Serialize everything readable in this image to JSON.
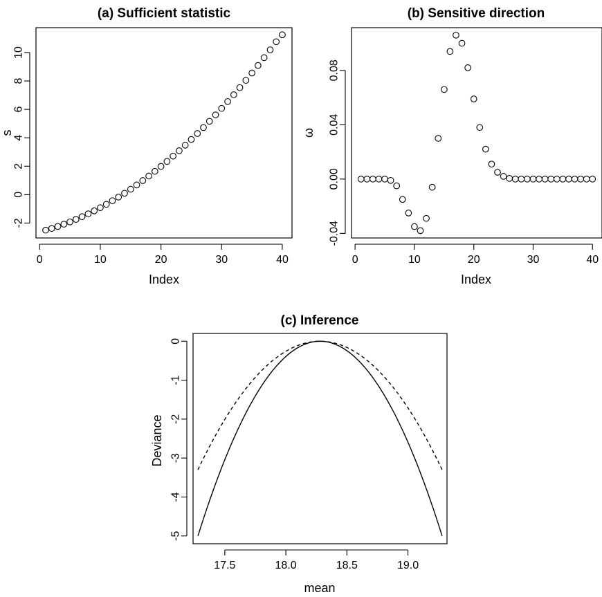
{
  "chart_data": [
    {
      "id": "a",
      "type": "scatter",
      "title": "(a) Sufficient statistic",
      "xlabel": "Index",
      "ylabel": "s",
      "xlim": [
        -0.6,
        41.6
      ],
      "ylim": [
        -3.05,
        11.75
      ],
      "xticks": [
        0,
        10,
        20,
        30,
        40
      ],
      "yticks": [
        -2,
        0,
        2,
        4,
        6,
        8,
        10
      ],
      "x": [
        1,
        2,
        3,
        4,
        5,
        6,
        7,
        8,
        9,
        10,
        11,
        12,
        13,
        14,
        15,
        16,
        17,
        18,
        19,
        20,
        21,
        22,
        23,
        24,
        25,
        26,
        27,
        28,
        29,
        30,
        31,
        32,
        33,
        34,
        35,
        36,
        37,
        38,
        39,
        40
      ],
      "y": [
        -2.5,
        -2.38,
        -2.24,
        -2.08,
        -1.92,
        -1.74,
        -1.55,
        -1.35,
        -1.14,
        -0.92,
        -0.68,
        -0.43,
        -0.17,
        0.1,
        0.38,
        0.68,
        0.99,
        1.31,
        1.64,
        1.99,
        2.34,
        2.71,
        3.09,
        3.48,
        3.88,
        4.3,
        4.72,
        5.16,
        5.61,
        6.07,
        6.55,
        7.03,
        7.53,
        8.04,
        8.56,
        9.09,
        9.64,
        10.19,
        10.76,
        11.25
      ]
    },
    {
      "id": "b",
      "type": "scatter",
      "title": "(b) Sensitive direction",
      "xlabel": "Index",
      "ylabel": "ω",
      "xlim": [
        -0.6,
        41.6
      ],
      "ylim": [
        -0.0434,
        0.1115
      ],
      "xticks": [
        0,
        10,
        20,
        30,
        40
      ],
      "yticks": [
        -0.04,
        0.0,
        0.04,
        0.08
      ],
      "ytick_labels": [
        "-0.04",
        "0.00",
        "0.04",
        "0.08"
      ],
      "x": [
        1,
        2,
        3,
        4,
        5,
        6,
        7,
        8,
        9,
        10,
        11,
        12,
        13,
        14,
        15,
        16,
        17,
        18,
        19,
        20,
        21,
        22,
        23,
        24,
        25,
        26,
        27,
        28,
        29,
        30,
        31,
        32,
        33,
        34,
        35,
        36,
        37,
        38,
        39,
        40
      ],
      "y": [
        0,
        0,
        0,
        0,
        0,
        -0.001,
        -0.005,
        -0.015,
        -0.025,
        -0.035,
        -0.038,
        -0.029,
        -0.006,
        0.03,
        0.066,
        0.094,
        0.106,
        0.1,
        0.082,
        0.059,
        0.038,
        0.022,
        0.011,
        0.005,
        0.002,
        0.0005,
        0,
        0,
        0,
        0,
        0,
        0,
        0,
        0,
        0,
        0,
        0,
        0,
        0,
        0
      ]
    },
    {
      "id": "c",
      "type": "line",
      "title": "(c) Inference",
      "xlabel": "mean",
      "ylabel": "Deviance",
      "xlim": [
        17.24,
        19.32
      ],
      "ylim": [
        -5.2,
        0.2
      ],
      "xticks": [
        17.5,
        18.0,
        18.5,
        19.0
      ],
      "xtick_labels": [
        "17.5",
        "18.0",
        "18.5",
        "19.0"
      ],
      "yticks": [
        -5,
        -4,
        -3,
        -2,
        -1,
        0
      ],
      "series": [
        {
          "style": "solid",
          "center": 18.28,
          "x_from": 17.28,
          "x_to": 19.28,
          "value_at_ends": -5.0
        },
        {
          "style": "dashed",
          "center": 18.28,
          "x_from": 17.28,
          "x_to": 19.28,
          "value_at_ends": -3.3
        }
      ]
    }
  ]
}
